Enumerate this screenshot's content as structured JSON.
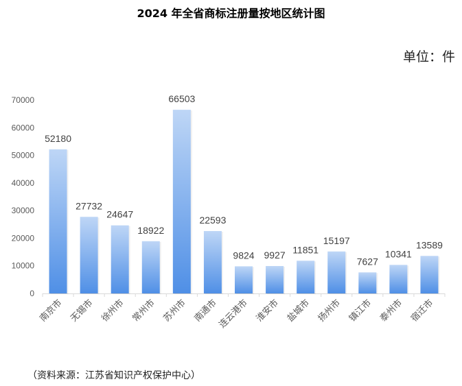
{
  "chart_data": {
    "type": "bar",
    "title": "2024 年全省商标注册量按地区统计图",
    "unit_label": "单位：件",
    "source": "（资料来源：江苏省知识产权保护中心）",
    "xlabel": "",
    "ylabel": "",
    "ylim": [
      0,
      70000
    ],
    "yticks": [
      0,
      10000,
      20000,
      30000,
      40000,
      50000,
      60000,
      70000
    ],
    "grid": false,
    "categories": [
      "南京市",
      "无锡市",
      "徐州市",
      "常州市",
      "苏州市",
      "南通市",
      "连云港市",
      "淮安市",
      "盐城市",
      "扬州市",
      "镇江市",
      "泰州市",
      "宿迁市"
    ],
    "values": [
      52180,
      27732,
      24647,
      18922,
      66503,
      22593,
      9824,
      9927,
      11851,
      15197,
      7627,
      10341,
      13589
    ],
    "colors": {
      "bar_top": "#bed6f6",
      "bar_bottom": "#4f8fe6",
      "axis": "#d9d9d9"
    }
  }
}
